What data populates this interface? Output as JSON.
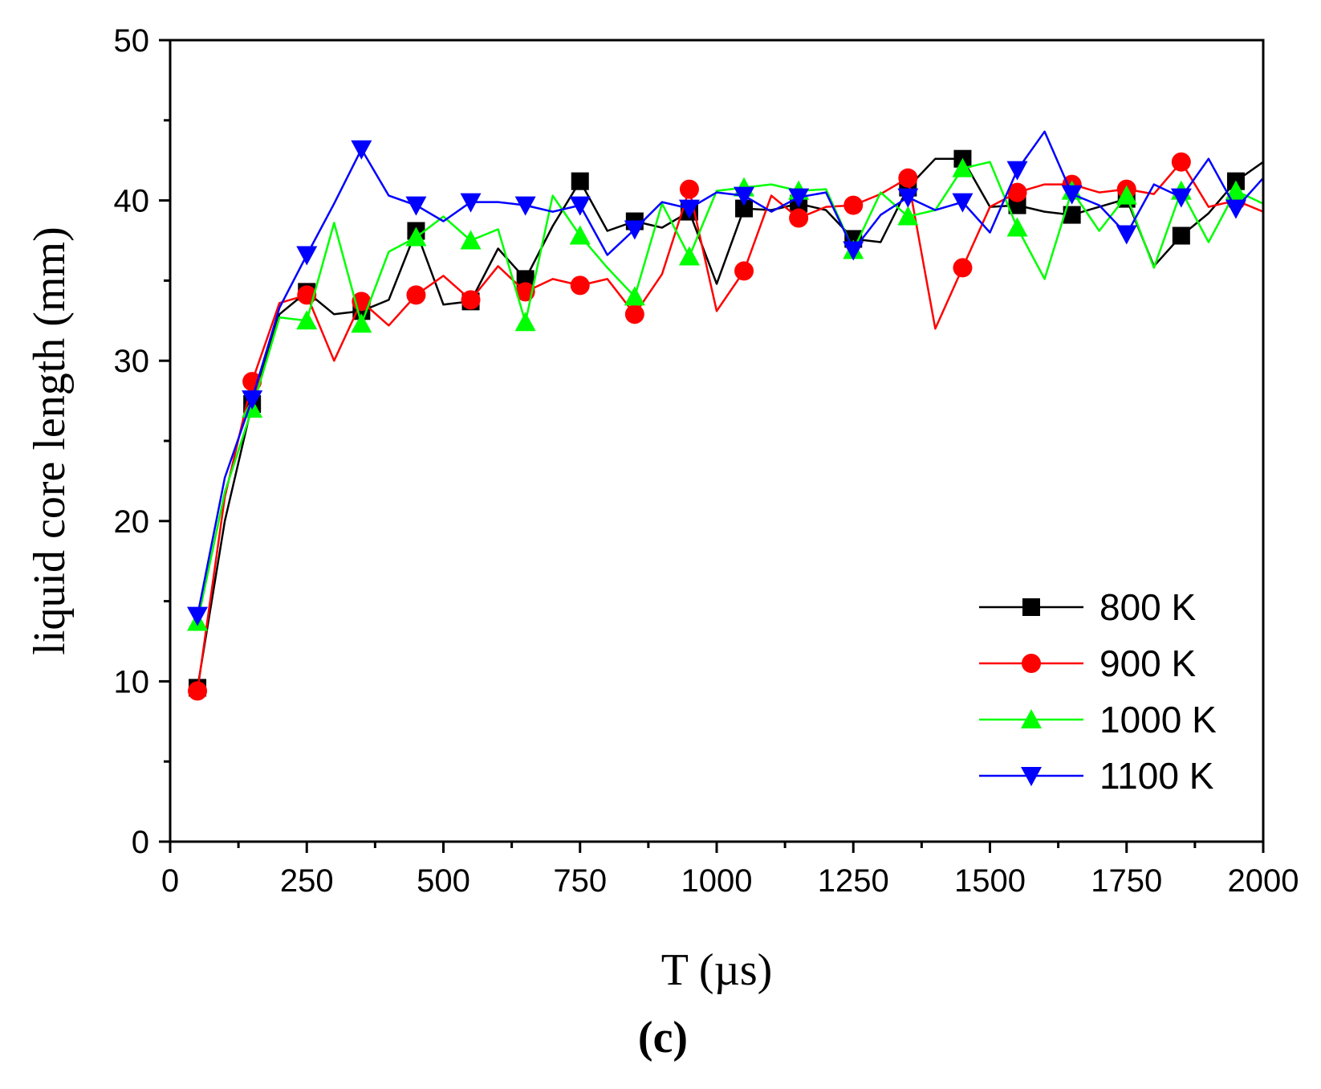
{
  "chart_data": {
    "type": "line",
    "title": "",
    "xlabel": "T (µs)",
    "ylabel": "liquid core length (mm)",
    "panel_label": "(c)",
    "xlim": [
      0,
      2000
    ],
    "ylim": [
      0,
      50
    ],
    "x_ticks": [
      0,
      250,
      500,
      750,
      1000,
      1250,
      1500,
      1750,
      2000
    ],
    "y_ticks": [
      0,
      10,
      20,
      30,
      40,
      50
    ],
    "legend_position": "bottom-right",
    "x": [
      50,
      100,
      150,
      200,
      250,
      300,
      350,
      400,
      450,
      500,
      550,
      600,
      650,
      700,
      750,
      800,
      850,
      900,
      950,
      1000,
      1050,
      1100,
      1150,
      1200,
      1250,
      1300,
      1350,
      1400,
      1450,
      1500,
      1550,
      1600,
      1650,
      1700,
      1750,
      1800,
      1850,
      1900,
      1950,
      2000
    ],
    "series": [
      {
        "name": "800 K",
        "color": "#000000",
        "marker": "square",
        "values": [
          9.6,
          20.0,
          27.3,
          32.9,
          34.3,
          32.9,
          33.1,
          33.8,
          38.1,
          33.5,
          33.7,
          37.0,
          35.1,
          38.4,
          41.2,
          38.1,
          38.7,
          38.3,
          39.3,
          34.8,
          39.5,
          39.4,
          39.8,
          39.4,
          37.6,
          37.4,
          40.8,
          42.6,
          42.6,
          39.6,
          39.7,
          39.3,
          39.1,
          39.6,
          40.1,
          35.9,
          37.8,
          39.2,
          41.2,
          42.4
        ]
      },
      {
        "name": "900 K",
        "color": "#ff0000",
        "marker": "circle",
        "values": [
          9.4,
          21.5,
          28.7,
          33.6,
          34.1,
          30.0,
          33.7,
          32.2,
          34.1,
          35.3,
          33.8,
          35.9,
          34.3,
          35.1,
          34.7,
          35.1,
          32.9,
          35.4,
          40.7,
          33.1,
          35.6,
          40.3,
          38.9,
          39.6,
          39.7,
          40.4,
          41.4,
          32.0,
          35.8,
          39.6,
          40.5,
          41.0,
          41.0,
          40.5,
          40.7,
          40.4,
          42.4,
          39.6,
          40.0,
          39.3
        ]
      },
      {
        "name": "1000 K",
        "color": "#00ff00",
        "marker": "triangle-up",
        "values": [
          13.7,
          21.8,
          27.0,
          32.7,
          32.5,
          38.6,
          32.3,
          36.8,
          37.7,
          39.0,
          37.5,
          38.2,
          32.4,
          40.3,
          37.8,
          35.8,
          34.0,
          39.8,
          36.5,
          40.6,
          40.8,
          41.0,
          40.6,
          40.7,
          36.9,
          40.5,
          39.0,
          39.4,
          42.0,
          42.4,
          38.3,
          35.1,
          40.6,
          38.1,
          40.3,
          35.8,
          40.6,
          37.4,
          40.6,
          39.8
        ]
      },
      {
        "name": "1100 K",
        "color": "#0000ff",
        "marker": "triangle-down",
        "values": [
          14.1,
          22.7,
          27.6,
          33.3,
          36.6,
          39.8,
          43.2,
          40.3,
          39.7,
          38.7,
          39.9,
          39.9,
          39.7,
          39.3,
          39.7,
          36.6,
          38.2,
          39.9,
          39.5,
          40.5,
          40.3,
          39.3,
          40.2,
          40.5,
          36.9,
          39.1,
          40.2,
          39.4,
          39.9,
          38.0,
          41.9,
          44.3,
          40.4,
          39.7,
          37.9,
          41.0,
          40.2,
          42.6,
          39.5,
          41.4
        ]
      }
    ]
  }
}
